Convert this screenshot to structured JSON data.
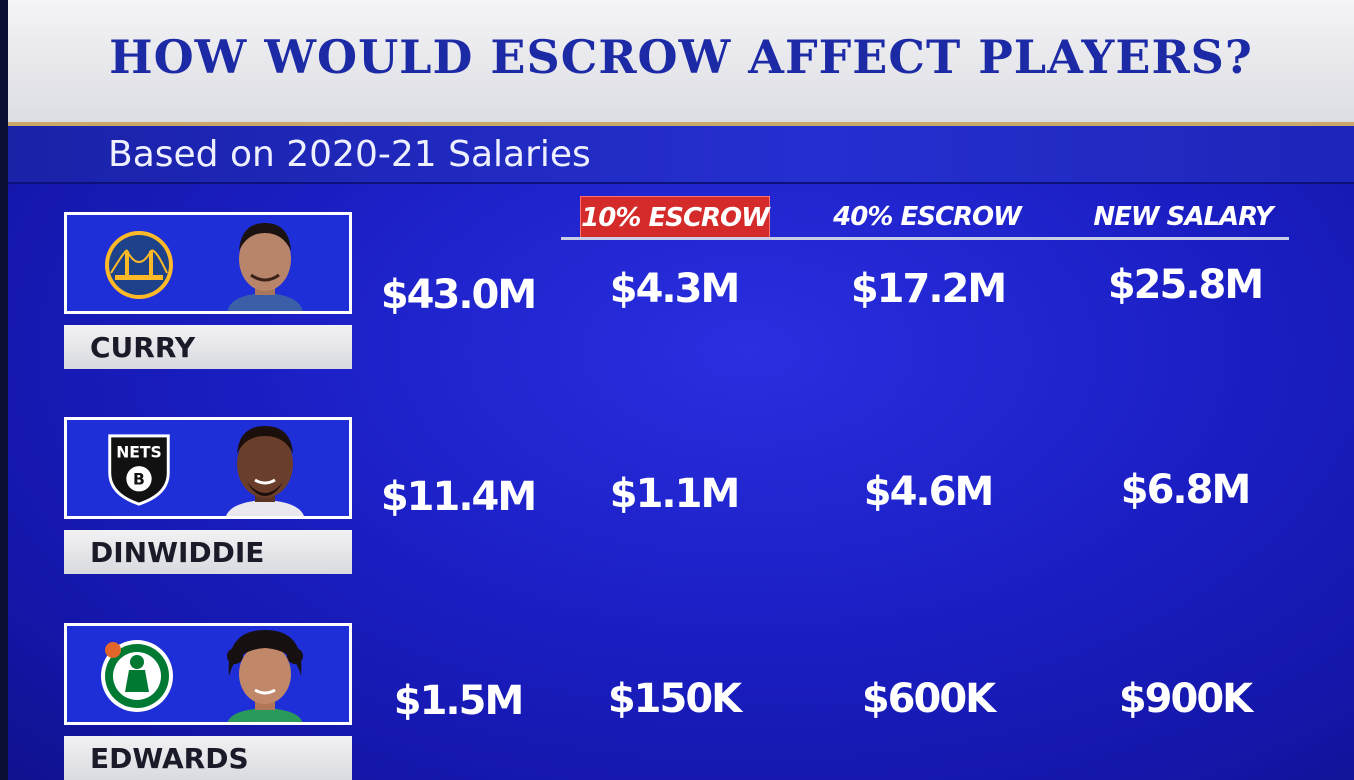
{
  "title": "HOW WOULD ESCROW AFFECT PLAYERS?",
  "subtitle": "Based on 2020-21 Salaries",
  "columns": [
    "10% ESCROW",
    "40% ESCROW",
    "NEW SALARY"
  ],
  "colors": {
    "background": "#1b1fc4",
    "title_text": "#1c2aa6",
    "highlight_header": "#d42a2a"
  },
  "players": [
    {
      "name": "CURRY",
      "team_logo": "warriors-logo-icon",
      "salary": "$43.0M",
      "escrow_10": "$4.3M",
      "escrow_40": "$17.2M",
      "new_salary": "$25.8M"
    },
    {
      "name": "DINWIDDIE",
      "team_logo": "nets-logo-icon",
      "salary": "$11.4M",
      "escrow_10": "$1.1M",
      "escrow_40": "$4.6M",
      "new_salary": "$6.8M"
    },
    {
      "name": "EDWARDS",
      "team_logo": "celtics-logo-icon",
      "salary": "$1.5M",
      "escrow_10": "$150K",
      "escrow_40": "$600K",
      "new_salary": "$900K"
    }
  ]
}
